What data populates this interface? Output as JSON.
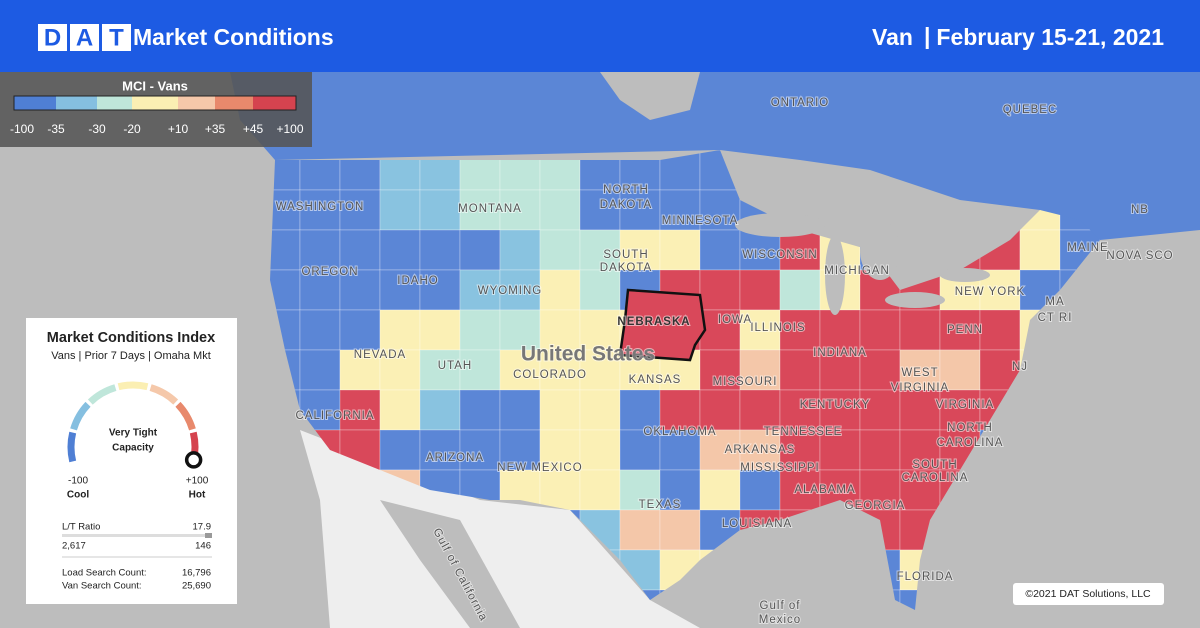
{
  "header": {
    "logo": [
      "D",
      "A",
      "T"
    ],
    "title": "Market Conditions",
    "equipment": "Van",
    "separator": "|",
    "dates": "February 15-21, 2021"
  },
  "legend": {
    "title": "MCI - Vans",
    "ticks": [
      "-100",
      "-35",
      "-30",
      "-20",
      "+10",
      "+35",
      "+45",
      "+100"
    ],
    "colors": [
      "#4f7fd4",
      "#85bfe0",
      "#bfe6da",
      "#fbefb3",
      "#f5c8aa",
      "#e8896c",
      "#d5434f"
    ]
  },
  "card": {
    "title": "Market Conditions Index",
    "subtitle": "Vans | Prior 7 Days | Omaha Mkt",
    "status": [
      "Very Tight",
      "Capacity"
    ],
    "min": "-100",
    "min_label": "Cool",
    "max": "+100",
    "max_label": "Hot",
    "ratio_label": "L/T Ratio",
    "ratio": "17.9",
    "loads": "2,617",
    "trucks": "146",
    "load_search_label": "Load Search Count:",
    "load_search": "16,796",
    "van_search_label": "Van Search Count:",
    "van_search": "25,690"
  },
  "map_labels": [
    "ONTARIO",
    "QUEBEC",
    "NB",
    "NOVA SCO",
    "MAINE",
    "WASHINGTON",
    "MONTANA",
    "NORTH",
    "DAKOTA",
    "MINNESOTA",
    "SOUTH",
    "DAKOTA",
    "WISCONSIN",
    "MICHIGAN",
    "OREGON",
    "IDAHO",
    "WYOMING",
    "NEBRASKA",
    "IOWA",
    "ILLINOIS",
    "INDIANA",
    "NEW YORK",
    "MA",
    "CT RI",
    "PENN",
    "NJ",
    "NEVADA",
    "UTAH",
    "United States",
    "COLORADO",
    "KANSAS",
    "MISSOURI",
    "WEST",
    "VIRGINIA",
    "KENTUCKY",
    "VIRGINIA",
    "CALIFORNIA",
    "TENNESSEE",
    "NORTH",
    "CAROLINA",
    "OKLAHOMA",
    "ARKANSAS",
    "ARIZONA",
    "NEW MEXICO",
    "MISSISSIPPI",
    "SOUTH",
    "CAROLINA",
    "ALABAMA",
    "GEORGIA",
    "TEXAS",
    "LOUISIANA",
    "FLORIDA",
    "Gulf of California",
    "Gulf of",
    "Mexico"
  ],
  "copyright": "©2021 DAT Solutions, LLC"
}
